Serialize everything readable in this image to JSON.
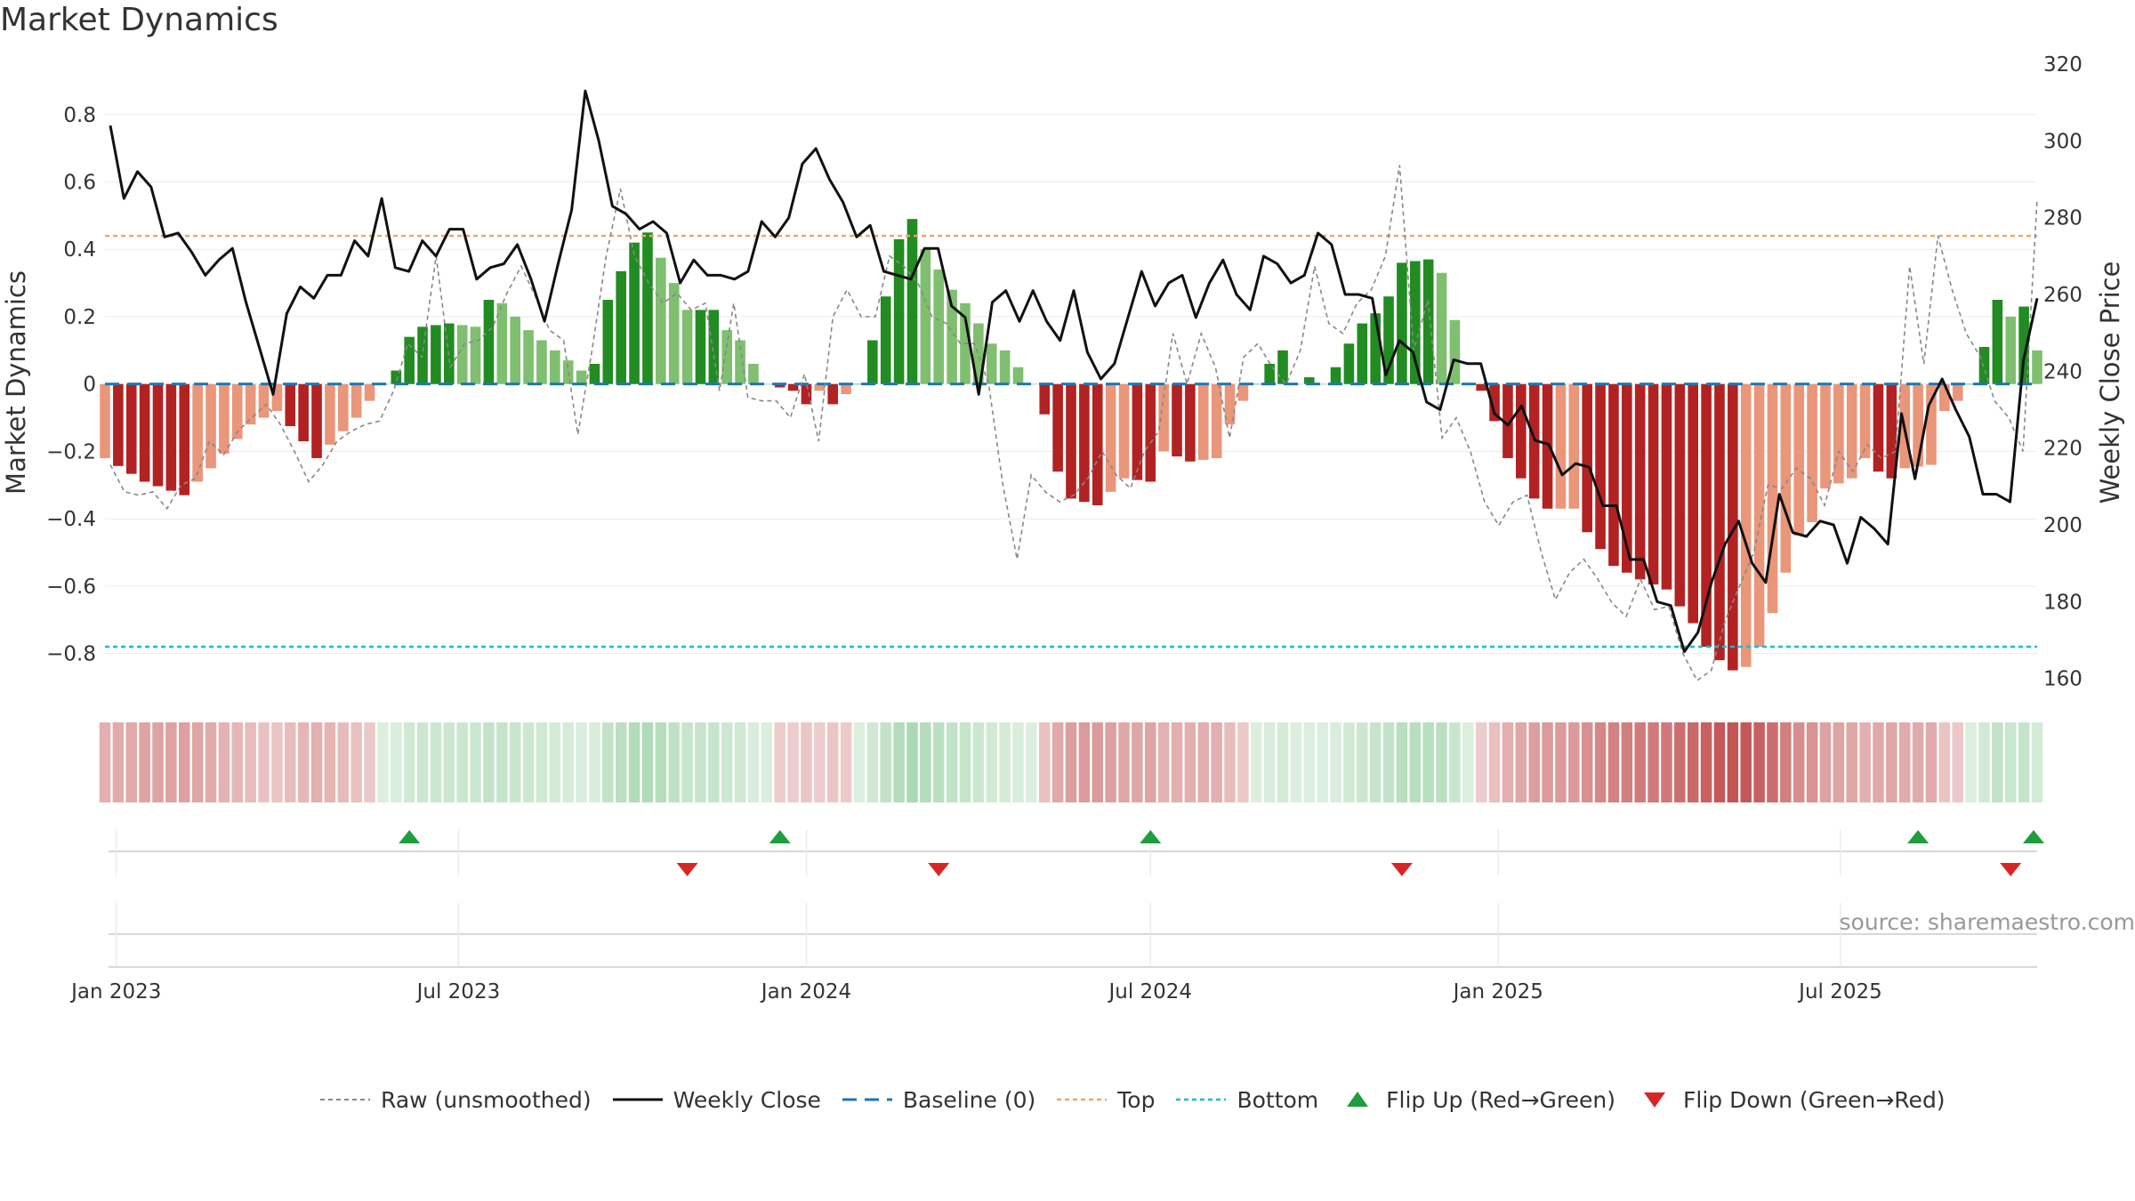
{
  "title": "Market Dynamics",
  "source": "source: sharemaestro.com",
  "chart_data": {
    "type": "bar",
    "title": "Market Dynamics",
    "ylabel": "Market Dynamics",
    "y2label": "Weekly Close Price",
    "ylim": [
      -0.92,
      0.95
    ],
    "y2lim": [
      156,
      320
    ],
    "yticks": [
      "−0.8",
      "−0.6",
      "−0.4",
      "−0.2",
      "0",
      "0.2",
      "0.4",
      "0.6",
      "0.8"
    ],
    "y2ticks": [
      "160",
      "180",
      "200",
      "220",
      "240",
      "260",
      "280",
      "300",
      "320"
    ],
    "xtick_labels": [
      "Jan 2023",
      "Jul 2023",
      "Jan 2024",
      "Jul 2024",
      "Jan 2025",
      "Jul 2025"
    ],
    "xtick_dates": [
      "2023-01-01",
      "2023-07-01",
      "2024-01-01",
      "2024-07-01",
      "2025-01-01",
      "2025-07-01"
    ],
    "x_start": "2022-12-26",
    "x_end": "2025-10-13",
    "top_threshold": 0.44,
    "bottom_threshold": -0.78,
    "baseline": 0,
    "colors": {
      "strong_green": "#228b22",
      "light_green": "#7fbf6f",
      "strong_red": "#b22222",
      "light_red": "#e9967a",
      "close": "#111111",
      "raw": "#888888",
      "baseline": "#1f77b4",
      "top": "#f4a460",
      "bottom": "#17becf",
      "flip_up": "#1e9e3e",
      "flip_down": "#d62728"
    },
    "legend": [
      "Raw (unsmoothed)",
      "Weekly Close",
      "Baseline (0)",
      "Top",
      "Bottom",
      "Flip Up (Red→Green)",
      "Flip Down (Green→Red)"
    ],
    "dynamics_kp": [
      [
        0,
        -0.22
      ],
      [
        3,
        -0.29
      ],
      [
        6,
        -0.33
      ],
      [
        8,
        -0.25
      ],
      [
        11,
        -0.12
      ],
      [
        13,
        -0.08
      ],
      [
        15,
        -0.17
      ],
      [
        16,
        -0.22
      ],
      [
        19,
        -0.1
      ],
      [
        20,
        -0.05
      ],
      [
        21,
        0.0
      ],
      [
        22,
        0.04
      ],
      [
        23,
        0.14
      ],
      [
        24,
        0.17
      ],
      [
        26,
        0.18
      ],
      [
        28,
        0.17
      ],
      [
        29,
        0.25
      ],
      [
        30,
        0.24
      ],
      [
        32,
        0.16
      ],
      [
        34,
        0.1
      ],
      [
        36,
        0.04
      ],
      [
        37,
        0.06
      ],
      [
        38,
        0.25
      ],
      [
        40,
        0.42
      ],
      [
        41,
        0.45
      ],
      [
        43,
        0.3
      ],
      [
        44,
        0.22
      ],
      [
        46,
        0.22
      ],
      [
        47,
        0.16
      ],
      [
        48,
        0.13
      ],
      [
        49,
        0.06
      ],
      [
        50,
        0.0
      ],
      [
        52,
        -0.02
      ],
      [
        53,
        -0.06
      ],
      [
        54,
        -0.02
      ],
      [
        55,
        -0.06
      ],
      [
        56,
        -0.03
      ],
      [
        57,
        0.0
      ],
      [
        58,
        0.13
      ],
      [
        59,
        0.26
      ],
      [
        60,
        0.43
      ],
      [
        61,
        0.49
      ],
      [
        62,
        0.4
      ],
      [
        64,
        0.28
      ],
      [
        65,
        0.24
      ],
      [
        66,
        0.18
      ],
      [
        67,
        0.12
      ],
      [
        68,
        0.1
      ],
      [
        70,
        0.0
      ],
      [
        71,
        -0.09
      ],
      [
        72,
        -0.26
      ],
      [
        73,
        -0.34
      ],
      [
        75,
        -0.36
      ],
      [
        77,
        -0.28
      ],
      [
        79,
        -0.29
      ],
      [
        80,
        -0.2
      ],
      [
        82,
        -0.23
      ],
      [
        84,
        -0.22
      ],
      [
        85,
        -0.12
      ],
      [
        86,
        -0.05
      ],
      [
        87,
        0.0
      ],
      [
        88,
        0.06
      ],
      [
        89,
        0.1
      ],
      [
        90,
        0.0
      ],
      [
        91,
        0.02
      ],
      [
        92,
        0.0
      ],
      [
        93,
        0.05
      ],
      [
        94,
        0.12
      ],
      [
        95,
        0.18
      ],
      [
        96,
        0.21
      ],
      [
        97,
        0.26
      ],
      [
        98,
        0.36
      ],
      [
        100,
        0.37
      ],
      [
        101,
        0.33
      ],
      [
        102,
        0.19
      ],
      [
        103,
        0.0
      ],
      [
        104,
        -0.02
      ],
      [
        105,
        -0.11
      ],
      [
        106,
        -0.22
      ],
      [
        107,
        -0.28
      ],
      [
        108,
        -0.34
      ],
      [
        109,
        -0.37
      ],
      [
        111,
        -0.37
      ],
      [
        112,
        -0.44
      ],
      [
        113,
        -0.49
      ],
      [
        114,
        -0.54
      ],
      [
        116,
        -0.58
      ],
      [
        118,
        -0.61
      ],
      [
        120,
        -0.71
      ],
      [
        121,
        -0.78
      ],
      [
        122,
        -0.82
      ],
      [
        123,
        -0.85
      ],
      [
        124,
        -0.84
      ],
      [
        125,
        -0.78
      ],
      [
        126,
        -0.68
      ],
      [
        127,
        -0.56
      ],
      [
        128,
        -0.45
      ],
      [
        129,
        -0.41
      ],
      [
        130,
        -0.31
      ],
      [
        132,
        -0.28
      ],
      [
        133,
        -0.22
      ],
      [
        134,
        -0.26
      ],
      [
        135,
        -0.28
      ],
      [
        136,
        -0.25
      ],
      [
        138,
        -0.24
      ],
      [
        139,
        -0.08
      ],
      [
        140,
        -0.05
      ],
      [
        141,
        0.0
      ],
      [
        142,
        0.11
      ],
      [
        143,
        0.25
      ],
      [
        144,
        0.2
      ],
      [
        145,
        0.23
      ],
      [
        146,
        0.1
      ],
      [
        147,
        0.0
      ],
      [
        148,
        -0.09
      ],
      [
        149,
        -0.04
      ],
      [
        150,
        0.14
      ]
    ],
    "close_kp": [
      [
        0,
        304
      ],
      [
        1,
        285
      ],
      [
        2,
        292
      ],
      [
        3,
        288
      ],
      [
        4,
        275
      ],
      [
        5,
        276
      ],
      [
        6,
        271
      ],
      [
        7,
        265
      ],
      [
        8,
        269
      ],
      [
        9,
        272
      ],
      [
        10,
        258
      ],
      [
        12,
        234
      ],
      [
        13,
        255
      ],
      [
        14,
        262
      ],
      [
        15,
        259
      ],
      [
        16,
        265
      ],
      [
        17,
        265
      ],
      [
        18,
        274
      ],
      [
        19,
        270
      ],
      [
        20,
        285
      ],
      [
        21,
        267
      ],
      [
        22,
        266
      ],
      [
        23,
        274
      ],
      [
        24,
        270
      ],
      [
        25,
        277
      ],
      [
        26,
        277
      ],
      [
        27,
        264
      ],
      [
        28,
        267
      ],
      [
        29,
        268
      ],
      [
        30,
        273
      ],
      [
        31,
        264
      ],
      [
        32,
        253
      ],
      [
        33,
        268
      ],
      [
        34,
        282
      ],
      [
        35,
        313
      ],
      [
        36,
        300
      ],
      [
        37,
        283
      ],
      [
        38,
        281
      ],
      [
        39,
        277
      ],
      [
        40,
        279
      ],
      [
        41,
        276
      ],
      [
        42,
        263
      ],
      [
        43,
        269
      ],
      [
        44,
        265
      ],
      [
        45,
        265
      ],
      [
        46,
        264
      ],
      [
        47,
        266
      ],
      [
        48,
        279
      ],
      [
        49,
        275
      ],
      [
        50,
        280
      ],
      [
        51,
        294
      ],
      [
        52,
        298
      ],
      [
        53,
        290
      ],
      [
        54,
        284
      ],
      [
        55,
        275
      ],
      [
        56,
        278
      ],
      [
        57,
        266
      ],
      [
        58,
        265
      ],
      [
        59,
        264
      ],
      [
        60,
        272
      ],
      [
        61,
        272
      ],
      [
        62,
        257
      ],
      [
        63,
        254
      ],
      [
        64,
        234
      ],
      [
        65,
        258
      ],
      [
        66,
        261
      ],
      [
        67,
        253
      ],
      [
        68,
        261
      ],
      [
        69,
        253
      ],
      [
        70,
        248
      ],
      [
        71,
        261
      ],
      [
        72,
        245
      ],
      [
        73,
        238
      ],
      [
        74,
        242
      ],
      [
        75,
        254
      ],
      [
        76,
        266
      ],
      [
        77,
        257
      ],
      [
        78,
        263
      ],
      [
        79,
        265
      ],
      [
        80,
        254
      ],
      [
        81,
        263
      ],
      [
        82,
        269
      ],
      [
        83,
        260
      ],
      [
        84,
        256
      ],
      [
        85,
        270
      ],
      [
        86,
        268
      ],
      [
        87,
        263
      ],
      [
        88,
        265
      ],
      [
        89,
        276
      ],
      [
        90,
        273
      ],
      [
        91,
        260
      ],
      [
        92,
        260
      ],
      [
        93,
        259
      ],
      [
        94,
        239
      ],
      [
        95,
        248
      ],
      [
        96,
        245
      ],
      [
        97,
        232
      ],
      [
        98,
        230
      ],
      [
        99,
        243
      ],
      [
        100,
        242
      ],
      [
        101,
        242
      ],
      [
        102,
        229
      ],
      [
        103,
        226
      ],
      [
        104,
        231
      ],
      [
        105,
        222
      ],
      [
        106,
        221
      ],
      [
        107,
        213
      ],
      [
        108,
        216
      ],
      [
        109,
        215
      ],
      [
        110,
        205
      ],
      [
        111,
        205
      ],
      [
        112,
        191
      ],
      [
        113,
        191
      ],
      [
        114,
        180
      ],
      [
        115,
        179
      ],
      [
        116,
        167
      ],
      [
        117,
        172
      ],
      [
        118,
        185
      ],
      [
        119,
        195
      ],
      [
        120,
        201
      ],
      [
        121,
        190
      ],
      [
        122,
        185
      ],
      [
        123,
        208
      ],
      [
        124,
        198
      ],
      [
        125,
        197
      ],
      [
        126,
        201
      ],
      [
        127,
        200
      ],
      [
        128,
        190
      ],
      [
        129,
        202
      ],
      [
        130,
        199
      ],
      [
        131,
        195
      ],
      [
        132,
        229
      ],
      [
        133,
        212
      ],
      [
        134,
        231
      ],
      [
        135,
        238
      ],
      [
        136,
        230
      ],
      [
        137,
        223
      ],
      [
        138,
        208
      ],
      [
        139,
        208
      ],
      [
        140,
        206
      ],
      [
        141,
        243
      ],
      [
        142,
        259
      ]
    ],
    "raw_kp": [
      [
        0,
        -0.24
      ],
      [
        1,
        -0.32
      ],
      [
        2,
        -0.33
      ],
      [
        3,
        -0.32
      ],
      [
        4,
        -0.37
      ],
      [
        5,
        -0.3
      ],
      [
        6,
        -0.28
      ],
      [
        7,
        -0.17
      ],
      [
        8,
        -0.21
      ],
      [
        9,
        -0.14
      ],
      [
        10,
        -0.1
      ],
      [
        11,
        -0.06
      ],
      [
        12,
        -0.12
      ],
      [
        13,
        -0.2
      ],
      [
        14,
        -0.29
      ],
      [
        15,
        -0.24
      ],
      [
        16,
        -0.17
      ],
      [
        17,
        -0.14
      ],
      [
        18,
        -0.12
      ],
      [
        19,
        -0.11
      ],
      [
        20,
        -0.02
      ],
      [
        21,
        0.12
      ],
      [
        22,
        0.08
      ],
      [
        23,
        0.38
      ],
      [
        24,
        0.05
      ],
      [
        25,
        0.12
      ],
      [
        26,
        0.13
      ],
      [
        27,
        0.17
      ],
      [
        28,
        0.27
      ],
      [
        29,
        0.35
      ],
      [
        30,
        0.26
      ],
      [
        31,
        0.16
      ],
      [
        32,
        0.13
      ],
      [
        33,
        -0.15
      ],
      [
        34,
        0.1
      ],
      [
        35,
        0.38
      ],
      [
        36,
        0.58
      ],
      [
        37,
        0.38
      ],
      [
        38,
        0.3
      ],
      [
        39,
        0.24
      ],
      [
        40,
        0.27
      ],
      [
        41,
        0.22
      ],
      [
        42,
        0.24
      ],
      [
        43,
        -0.02
      ],
      [
        44,
        0.24
      ],
      [
        45,
        -0.04
      ],
      [
        46,
        -0.05
      ],
      [
        47,
        -0.05
      ],
      [
        48,
        -0.1
      ],
      [
        49,
        0.03
      ],
      [
        50,
        -0.17
      ],
      [
        51,
        0.2
      ],
      [
        52,
        0.28
      ],
      [
        53,
        0.2
      ],
      [
        54,
        0.2
      ],
      [
        55,
        0.38
      ],
      [
        56,
        0.35
      ],
      [
        57,
        0.3
      ],
      [
        58,
        0.2
      ],
      [
        59,
        0.18
      ],
      [
        60,
        0.12
      ],
      [
        61,
        0.12
      ],
      [
        62,
        0.0
      ],
      [
        63,
        -0.3
      ],
      [
        64,
        -0.52
      ],
      [
        65,
        -0.27
      ],
      [
        66,
        -0.32
      ],
      [
        67,
        -0.35
      ],
      [
        68,
        -0.33
      ],
      [
        69,
        -0.28
      ],
      [
        70,
        -0.2
      ],
      [
        71,
        -0.27
      ],
      [
        72,
        -0.31
      ],
      [
        73,
        -0.2
      ],
      [
        74,
        -0.14
      ],
      [
        75,
        0.15
      ],
      [
        76,
        0.0
      ],
      [
        77,
        0.15
      ],
      [
        78,
        0.05
      ],
      [
        79,
        -0.16
      ],
      [
        80,
        0.08
      ],
      [
        81,
        0.12
      ],
      [
        82,
        0.05
      ],
      [
        83,
        0.0
      ],
      [
        84,
        0.1
      ],
      [
        85,
        0.35
      ],
      [
        86,
        0.18
      ],
      [
        87,
        0.15
      ],
      [
        88,
        0.24
      ],
      [
        89,
        0.28
      ],
      [
        90,
        0.38
      ],
      [
        91,
        0.65
      ],
      [
        92,
        0.1
      ],
      [
        93,
        0.25
      ],
      [
        94,
        -0.16
      ],
      [
        95,
        -0.1
      ],
      [
        96,
        -0.2
      ],
      [
        97,
        -0.35
      ],
      [
        98,
        -0.42
      ],
      [
        99,
        -0.35
      ],
      [
        100,
        -0.33
      ],
      [
        101,
        -0.5
      ],
      [
        102,
        -0.64
      ],
      [
        103,
        -0.56
      ],
      [
        104,
        -0.52
      ],
      [
        105,
        -0.58
      ],
      [
        106,
        -0.65
      ],
      [
        107,
        -0.69
      ],
      [
        108,
        -0.58
      ],
      [
        109,
        -0.67
      ],
      [
        110,
        -0.66
      ],
      [
        111,
        -0.8
      ],
      [
        112,
        -0.88
      ],
      [
        113,
        -0.85
      ],
      [
        114,
        -0.7
      ],
      [
        115,
        -0.6
      ],
      [
        116,
        -0.5
      ],
      [
        117,
        -0.3
      ],
      [
        118,
        -0.31
      ],
      [
        119,
        -0.25
      ],
      [
        120,
        -0.28
      ],
      [
        121,
        -0.36
      ],
      [
        122,
        -0.2
      ],
      [
        123,
        -0.26
      ],
      [
        124,
        -0.18
      ],
      [
        125,
        -0.22
      ],
      [
        126,
        -0.2
      ],
      [
        127,
        0.35
      ],
      [
        128,
        0.06
      ],
      [
        129,
        0.44
      ],
      [
        130,
        0.28
      ],
      [
        131,
        0.15
      ],
      [
        132,
        0.08
      ],
      [
        133,
        -0.05
      ],
      [
        134,
        -0.1
      ],
      [
        135,
        -0.2
      ],
      [
        136,
        0.55
      ]
    ],
    "flip_up_dates": [
      "2023-06-05",
      "2023-12-18",
      "2024-07-01",
      "2025-08-11",
      "2025-10-13"
    ],
    "flip_down_dates": [
      "2023-10-30",
      "2024-03-11",
      "2024-11-11",
      "2025-09-29"
    ]
  }
}
